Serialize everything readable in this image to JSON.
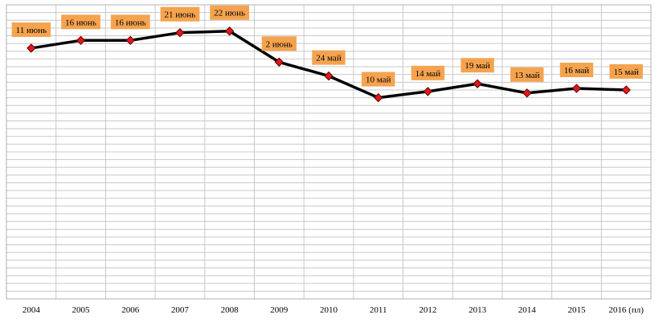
{
  "chart_data": {
    "type": "line",
    "title": "",
    "xlabel": "",
    "ylabel": "",
    "grid": true,
    "legend": "none",
    "y_axis_labels_shown": false,
    "ylim": [
      0,
      190
    ],
    "categories": [
      "2004",
      "2005",
      "2006",
      "2007",
      "2008",
      "2009",
      "2010",
      "2011",
      "2012",
      "2013",
      "2014",
      "2015",
      "2016 (пл)"
    ],
    "values": [
      162,
      167,
      167,
      172,
      173,
      153,
      144,
      130,
      134,
      139,
      133,
      136,
      135
    ],
    "data_labels": [
      "11 июнь",
      "16 июнь",
      "16 июнь",
      "21 июнь",
      "22 июнь",
      "2 июнь",
      "24 май",
      "10 май",
      "14 май",
      "19 май",
      "13 май",
      "16 май",
      "15 май"
    ],
    "colors": {
      "line": "#000000",
      "marker": "#e0191b",
      "label_background": "#f5a34f",
      "grid": "#c8c8c8"
    }
  }
}
